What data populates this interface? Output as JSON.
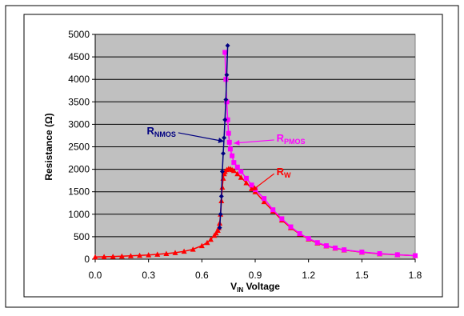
{
  "chart_data": {
    "type": "line",
    "title": "",
    "xlabel": {
      "main": "V",
      "sub": "IN",
      "rest": " Voltage"
    },
    "ylabel": "Resistance (Ω)",
    "xlim": [
      0,
      1.8
    ],
    "ylim": [
      0,
      5000
    ],
    "x_ticks": [
      "0.0",
      "0.3",
      "0.6",
      "0.9",
      "1.2",
      "1.5",
      "1.8"
    ],
    "x_tick_values": [
      0,
      0.3,
      0.6,
      0.9,
      1.2,
      1.5,
      1.8
    ],
    "y_ticks": [
      "0",
      "500",
      "1000",
      "1500",
      "2000",
      "2500",
      "3000",
      "3500",
      "4000",
      "4500",
      "5000"
    ],
    "y_tick_values": [
      0,
      500,
      1000,
      1500,
      2000,
      2500,
      3000,
      3500,
      4000,
      4500,
      5000
    ],
    "grid": "horizontal",
    "plot_background": "#c0c0c0",
    "series": [
      {
        "label_main": "R",
        "label_sub": "NMOS",
        "color": "#000080",
        "marker": "diamond",
        "points": [
          [
            0.7,
            700
          ],
          [
            0.705,
            1000
          ],
          [
            0.71,
            1400
          ],
          [
            0.715,
            1950
          ],
          [
            0.72,
            2350
          ],
          [
            0.725,
            2700
          ],
          [
            0.73,
            3100
          ],
          [
            0.735,
            3550
          ],
          [
            0.74,
            4100
          ],
          [
            0.745,
            4750
          ]
        ]
      },
      {
        "label_main": "R",
        "label_sub": "PMOS",
        "color": "#ff00ff",
        "marker": "square",
        "points": [
          [
            0.73,
            4600
          ],
          [
            0.735,
            4000
          ],
          [
            0.74,
            3500
          ],
          [
            0.745,
            3100
          ],
          [
            0.75,
            2800
          ],
          [
            0.755,
            2600
          ],
          [
            0.76,
            2450
          ],
          [
            0.77,
            2300
          ],
          [
            0.78,
            2150
          ],
          [
            0.8,
            2050
          ],
          [
            0.82,
            1950
          ],
          [
            0.85,
            1800
          ],
          [
            0.88,
            1650
          ],
          [
            0.9,
            1550
          ],
          [
            0.95,
            1350
          ],
          [
            1.0,
            1100
          ],
          [
            1.05,
            900
          ],
          [
            1.1,
            720
          ],
          [
            1.15,
            570
          ],
          [
            1.2,
            460
          ],
          [
            1.25,
            370
          ],
          [
            1.3,
            300
          ],
          [
            1.35,
            250
          ],
          [
            1.4,
            210
          ],
          [
            1.5,
            160
          ],
          [
            1.6,
            125
          ],
          [
            1.7,
            100
          ],
          [
            1.8,
            80
          ]
        ]
      },
      {
        "label_main": "R",
        "label_sub": "W",
        "color": "#ff0000",
        "marker": "triangle",
        "points": [
          [
            0.0,
            50
          ],
          [
            0.05,
            55
          ],
          [
            0.1,
            60
          ],
          [
            0.15,
            66
          ],
          [
            0.2,
            75
          ],
          [
            0.25,
            84
          ],
          [
            0.3,
            95
          ],
          [
            0.35,
            108
          ],
          [
            0.4,
            125
          ],
          [
            0.45,
            145
          ],
          [
            0.5,
            175
          ],
          [
            0.55,
            220
          ],
          [
            0.6,
            300
          ],
          [
            0.63,
            370
          ],
          [
            0.65,
            440
          ],
          [
            0.67,
            530
          ],
          [
            0.68,
            580
          ],
          [
            0.69,
            640
          ],
          [
            0.695,
            700
          ],
          [
            0.7,
            800
          ],
          [
            0.705,
            1000
          ],
          [
            0.71,
            1300
          ],
          [
            0.715,
            1600
          ],
          [
            0.72,
            1800
          ],
          [
            0.725,
            1900
          ],
          [
            0.73,
            1950
          ],
          [
            0.74,
            1990
          ],
          [
            0.75,
            2010
          ],
          [
            0.76,
            2010
          ],
          [
            0.77,
            1990
          ],
          [
            0.78,
            1970
          ],
          [
            0.8,
            1900
          ],
          [
            0.82,
            1820
          ],
          [
            0.85,
            1700
          ],
          [
            0.88,
            1570
          ],
          [
            0.9,
            1500
          ],
          [
            0.95,
            1280
          ],
          [
            1.0,
            1070
          ],
          [
            1.05,
            870
          ],
          [
            1.1,
            700
          ],
          [
            1.15,
            560
          ],
          [
            1.2,
            450
          ],
          [
            1.25,
            360
          ],
          [
            1.3,
            295
          ],
          [
            1.35,
            245
          ],
          [
            1.4,
            205
          ],
          [
            1.5,
            155
          ],
          [
            1.6,
            120
          ],
          [
            1.7,
            97
          ],
          [
            1.8,
            78
          ]
        ]
      }
    ],
    "annotations": [
      {
        "series": 0,
        "label_at": [
          0.29,
          2780
        ],
        "arrow_to": [
          0.725,
          2620
        ]
      },
      {
        "series": 1,
        "label_at": [
          1.02,
          2620
        ],
        "arrow_to": [
          0.78,
          2580
        ]
      },
      {
        "series": 2,
        "label_at": [
          1.02,
          1870
        ],
        "arrow_to": [
          0.88,
          1520
        ]
      }
    ]
  }
}
